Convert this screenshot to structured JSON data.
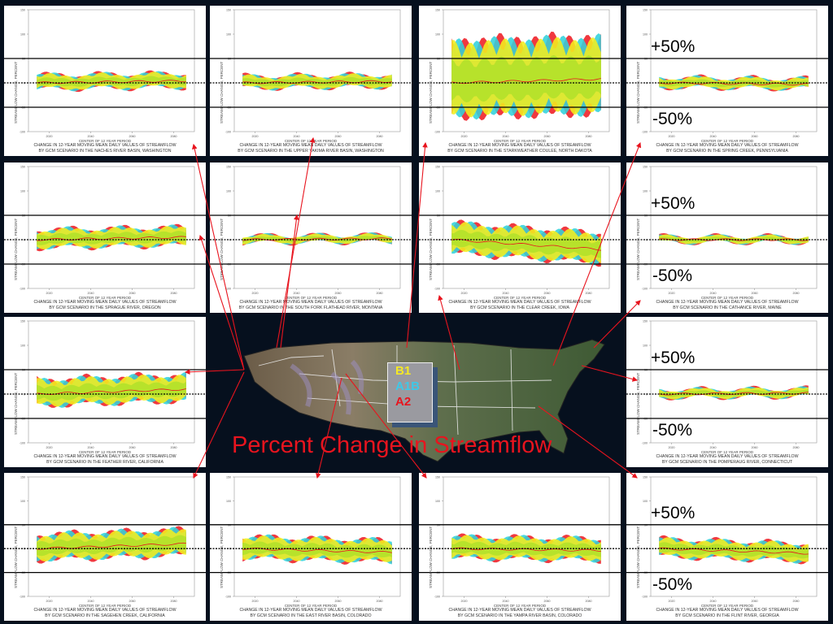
{
  "title": "Percent Change in Streamflow",
  "legend": [
    {
      "label": "B1",
      "color": "#f4e826"
    },
    {
      "label": "A1B",
      "color": "#3ec8e8"
    },
    {
      "label": "A2",
      "color": "#e8141e"
    }
  ],
  "colors": {
    "b1": "#f2ee1e",
    "a1b": "#31d1dc",
    "a2": "#ee1c24",
    "overlap": "#b2e02a",
    "median": "#e8141e"
  },
  "common": {
    "caption_line1": "CHANGE IN 12-YEAR MOVING MEAN DAILY VALUES OF STREAMFLOW",
    "xlabel": "CENTER OF 12 YEAR PERIOD",
    "ylabel": "STREAMFLOW CHANGE, PERCENT",
    "x_ticks": [
      "2020",
      "2040",
      "2060",
      "2080"
    ],
    "y_ticks": [
      "150",
      "100",
      "50",
      "0",
      "-50",
      "-100"
    ],
    "ylim": [
      -100,
      150
    ],
    "xlim": [
      2010,
      2090
    ],
    "plus_label": "+50%",
    "minus_label": "-50%"
  },
  "chart_data": [
    {
      "type": "area",
      "caption_line2": "BY GCM SCENARIO IN THE NACHES RIVER BASIN, WASHINGTON",
      "spread": 14,
      "trend": 4,
      "show_labels": false
    },
    {
      "type": "area",
      "caption_line2": "BY GCM SCENARIO IN THE UPPER YAKIMA RIVER BASIN, WASHINGTON",
      "spread": 12,
      "trend": 3,
      "show_labels": false
    },
    {
      "type": "area",
      "caption_line2": "BY GCM SCENARIO IN THE STARKWEATHER COULEE, NORTH DAKOTA",
      "spread": 75,
      "trend": 8,
      "show_labels": false
    },
    {
      "type": "area",
      "caption_line2": "BY GCM SCENARIO IN THE SPRING CREEK, PENNSYLVANIA",
      "spread": 10,
      "trend": -3,
      "show_labels": true
    },
    {
      "type": "area",
      "caption_line2": "BY GCM SCENARIO IN THE SPRAGUE RIVER, OREGON",
      "spread": 18,
      "trend": 5,
      "show_labels": false
    },
    {
      "type": "area",
      "caption_line2": "BY GCM SCENARIO IN THE SOUTH FORK FLATHEAD RIVER, MONTANA",
      "spread": 7,
      "trend": 2,
      "show_labels": false
    },
    {
      "type": "area",
      "caption_line2": "BY GCM SCENARIO IN THE CLEAR CREEK, IOWA",
      "spread": 30,
      "trend": -20,
      "show_labels": false
    },
    {
      "type": "area",
      "caption_line2": "BY GCM SCENARIO IN THE CATHANCE RIVER, MAINE",
      "spread": 6,
      "trend": 0,
      "show_labels": true
    },
    {
      "type": "area",
      "caption_line2": "BY GCM SCENARIO IN THE FEATHER RIVER, CALIFORNIA",
      "spread": 26,
      "trend": 10,
      "show_labels": false
    },
    {
      "type": "area",
      "caption_line2": "BY GCM SCENARIO IN THE POMPERAUG RIVER, CONNECTICUT",
      "spread": 8,
      "trend": 2,
      "show_labels": true
    },
    {
      "type": "area",
      "caption_line2": "BY GCM SCENARIO IN THE SAGEHEN CREEK, CALIFORNIA",
      "spread": 26,
      "trend": 10,
      "show_labels": false
    },
    {
      "type": "area",
      "caption_line2": "BY GCM SCENARIO IN THE EAST RIVER BASIN, COLORADO",
      "spread": 22,
      "trend": -8,
      "show_labels": false
    },
    {
      "type": "area",
      "caption_line2": "BY GCM SCENARIO IN THE YAMPA RIVER BASIN, COLORADO",
      "spread": 22,
      "trend": -4,
      "show_labels": false
    },
    {
      "type": "area",
      "caption_line2": "BY GCM SCENARIO IN THE FLINT RIVER, GEORGIA",
      "spread": 18,
      "trend": -10,
      "show_labels": true
    }
  ]
}
